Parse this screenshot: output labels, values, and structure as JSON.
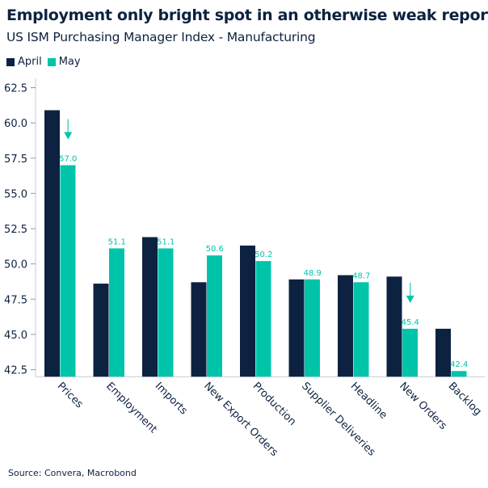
{
  "chart_data": {
    "type": "bar",
    "title": "Employment only bright spot in an otherwise weak report",
    "subtitle": "US ISM Purchasing Manager Index - Manufacturing",
    "categories": [
      "Prices",
      "Employment",
      "Imports",
      "New Export Orders",
      "Production",
      "Supplier Deliveries",
      "Headline",
      "New Orders",
      "Backlog"
    ],
    "series": [
      {
        "name": "April",
        "color": "#0d2240",
        "values": [
          60.9,
          48.6,
          51.9,
          48.7,
          51.3,
          48.9,
          49.2,
          49.1,
          45.4
        ]
      },
      {
        "name": "May",
        "color": "#00c4aa",
        "values": [
          57.0,
          51.1,
          51.1,
          50.6,
          50.2,
          48.9,
          48.7,
          45.4,
          42.4
        ],
        "data_labels": [
          "57.0",
          "51.1",
          "51.1",
          "50.6",
          "50.2",
          "48.9",
          "48.7",
          "45.4",
          "42.4"
        ]
      }
    ],
    "yticks": [
      "42.5",
      "45.0",
      "47.5",
      "50.0",
      "52.5",
      "55.0",
      "57.5",
      "60.0",
      "62.5"
    ],
    "ylim": [
      42,
      63
    ],
    "grid": false,
    "legend": "top-left",
    "annotations": [
      {
        "type": "down-arrow",
        "category": "Prices",
        "color": "#00c4aa"
      },
      {
        "type": "down-arrow",
        "category": "New Orders",
        "color": "#00c4aa"
      }
    ],
    "source": "Source: Convera, Macrobond"
  }
}
